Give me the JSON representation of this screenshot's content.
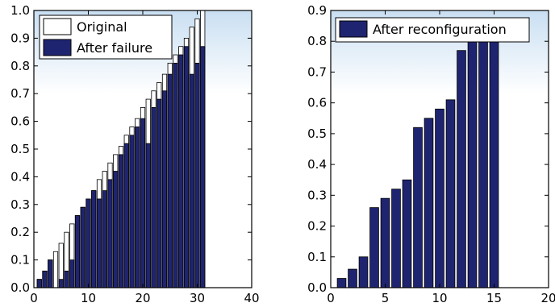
{
  "colors": {
    "bar_fill": "#1f2470",
    "bar_edge": "#000000",
    "original_fill": "#ffffff",
    "background_top": "#c9dff2",
    "background_bottom": "#ffffff"
  },
  "chart_data": [
    {
      "type": "bar",
      "title": "",
      "xlabel": "",
      "ylabel": "",
      "xlim": [
        0,
        40
      ],
      "ylim": [
        0,
        1.0
      ],
      "xticks": [
        0,
        10,
        20,
        30,
        40
      ],
      "yticks": [
        0.0,
        0.1,
        0.2,
        0.3,
        0.4,
        0.5,
        0.6,
        0.7,
        0.8,
        0.9,
        1.0
      ],
      "ytick_labels": [
        "0.0",
        "0.1",
        "0.2",
        "0.3",
        "0.4",
        "0.5",
        "0.6",
        "0.7",
        "0.8",
        "0.9",
        "1.0"
      ],
      "grid": false,
      "legend": {
        "position": "top-left"
      },
      "series": [
        {
          "name": "Original",
          "style": "outline",
          "x": [
            1,
            2,
            3,
            4,
            5,
            6,
            7,
            8,
            9,
            10,
            11,
            12,
            13,
            14,
            15,
            16,
            17,
            18,
            19,
            20,
            21,
            22,
            23,
            24,
            25,
            26,
            27,
            28,
            29,
            30,
            31
          ],
          "values": [
            0.03,
            0.06,
            0.1,
            0.13,
            0.16,
            0.2,
            0.23,
            0.26,
            0.29,
            0.32,
            0.35,
            0.39,
            0.42,
            0.45,
            0.48,
            0.51,
            0.55,
            0.58,
            0.61,
            0.65,
            0.68,
            0.71,
            0.74,
            0.77,
            0.81,
            0.84,
            0.87,
            0.9,
            0.94,
            0.97,
            1.0
          ]
        },
        {
          "name": "After failure",
          "style": "filled",
          "x": [
            1,
            2,
            3,
            4,
            5,
            6,
            7,
            8,
            9,
            10,
            11,
            12,
            13,
            14,
            15,
            16,
            17,
            18,
            19,
            20,
            21,
            22,
            23,
            24,
            25,
            26,
            27,
            28,
            29,
            30,
            31
          ],
          "values": [
            0.03,
            0.06,
            0.1,
            0.0,
            0.03,
            0.06,
            0.1,
            0.26,
            0.29,
            0.32,
            0.35,
            0.32,
            0.35,
            0.39,
            0.42,
            0.48,
            0.52,
            0.55,
            0.58,
            0.61,
            0.52,
            0.65,
            0.68,
            0.71,
            0.77,
            0.81,
            0.84,
            0.87,
            0.77,
            0.81,
            0.87
          ]
        }
      ]
    },
    {
      "type": "bar",
      "title": "",
      "xlabel": "",
      "ylabel": "",
      "xlim": [
        0,
        20
      ],
      "ylim": [
        0,
        0.9
      ],
      "xticks": [
        0,
        5,
        10,
        15,
        20
      ],
      "yticks": [
        0.0,
        0.1,
        0.2,
        0.3,
        0.4,
        0.5,
        0.6,
        0.7,
        0.8,
        0.9
      ],
      "ytick_labels": [
        "0.0",
        "0.1",
        "0.2",
        "0.3",
        "0.4",
        "0.5",
        "0.6",
        "0.7",
        "0.8",
        "0.9"
      ],
      "grid": false,
      "legend": {
        "position": "top-right"
      },
      "series": [
        {
          "name": "After reconfiguration",
          "style": "filled",
          "x": [
            1,
            2,
            3,
            4,
            5,
            6,
            7,
            8,
            9,
            10,
            11,
            12,
            13,
            14,
            15
          ],
          "values": [
            0.03,
            0.06,
            0.1,
            0.26,
            0.29,
            0.32,
            0.35,
            0.52,
            0.55,
            0.58,
            0.61,
            0.77,
            0.81,
            0.84,
            0.87
          ]
        }
      ]
    }
  ]
}
